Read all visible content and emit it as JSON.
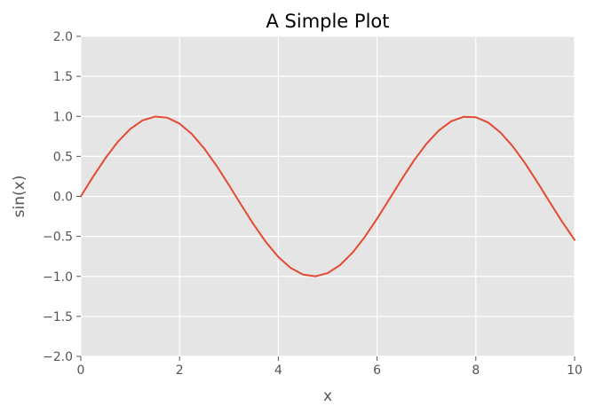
{
  "chart_data": {
    "type": "line",
    "title": "A Simple Plot",
    "xlabel": "x",
    "ylabel": "sin(x)",
    "xlim": [
      0,
      10
    ],
    "ylim": [
      -2.0,
      2.0
    ],
    "x_ticks": [
      0,
      2,
      4,
      6,
      8,
      10
    ],
    "x_tick_labels": [
      "0",
      "2",
      "4",
      "6",
      "8",
      "10"
    ],
    "y_ticks": [
      -2.0,
      -1.5,
      -1.0,
      -0.5,
      0.0,
      0.5,
      1.0,
      1.5,
      2.0
    ],
    "y_tick_labels": [
      "−2.0",
      "−1.5",
      "−1.0",
      "−0.5",
      "0.0",
      "0.5",
      "1.0",
      "1.5",
      "2.0"
    ],
    "grid": true,
    "background": "#e5e5e5",
    "series": [
      {
        "color": "#e24a33",
        "x": [
          0.0,
          0.25,
          0.5,
          0.75,
          1.0,
          1.25,
          1.5,
          1.75,
          2.0,
          2.25,
          2.5,
          2.75,
          3.0,
          3.25,
          3.5,
          3.75,
          4.0,
          4.25,
          4.5,
          4.75,
          5.0,
          5.25,
          5.5,
          5.75,
          6.0,
          6.25,
          6.5,
          6.75,
          7.0,
          7.25,
          7.5,
          7.75,
          8.0,
          8.25,
          8.5,
          8.75,
          9.0,
          9.25,
          9.5,
          9.75,
          10.0
        ],
        "y": [
          0.0,
          0.247,
          0.479,
          0.682,
          0.841,
          0.949,
          0.997,
          0.984,
          0.909,
          0.778,
          0.598,
          0.382,
          0.141,
          -0.108,
          -0.351,
          -0.572,
          -0.757,
          -0.895,
          -0.978,
          -0.999,
          -0.959,
          -0.859,
          -0.706,
          -0.508,
          -0.279,
          -0.033,
          0.215,
          0.451,
          0.657,
          0.823,
          0.938,
          0.994,
          0.989,
          0.923,
          0.798,
          0.624,
          0.412,
          0.174,
          -0.075,
          -0.319,
          -0.544
        ]
      }
    ]
  }
}
